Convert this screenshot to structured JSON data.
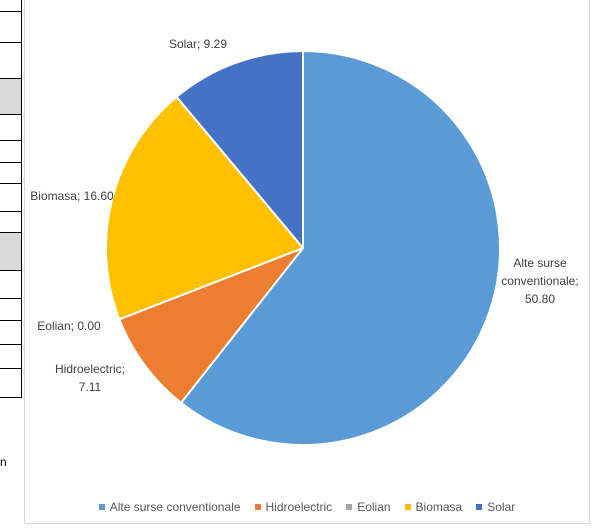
{
  "chart_data": {
    "type": "pie",
    "title": "",
    "categories": [
      "Alte surse conventionale",
      "Hidroelectric",
      "Eolian",
      "Biomasa",
      "Solar"
    ],
    "values": [
      50.8,
      7.11,
      0.0,
      16.6,
      9.29
    ],
    "data_labels": [
      [
        "Alte surse",
        "conventionale;",
        "50.80"
      ],
      [
        "Hidroelectric;",
        "7.11"
      ],
      [
        "Eolian; 0.00"
      ],
      [
        "Biomasa; 16.60"
      ],
      [
        "Solar; 9.29"
      ]
    ],
    "legend": {
      "position": "bottom",
      "entries": [
        "Alte surse conventionale",
        "Hidroelectric",
        "Eolian",
        "Biomasa",
        "Solar"
      ]
    },
    "colors": [
      "#5b9bd5",
      "#ed7d31",
      "#a5a5a5",
      "#ffc000",
      "#4472c4"
    ],
    "start_angle_deg": 0,
    "direction": "clockwise",
    "slice_border_color": "#ffffff"
  },
  "sheet_fragment": {
    "cut_text": "n"
  }
}
